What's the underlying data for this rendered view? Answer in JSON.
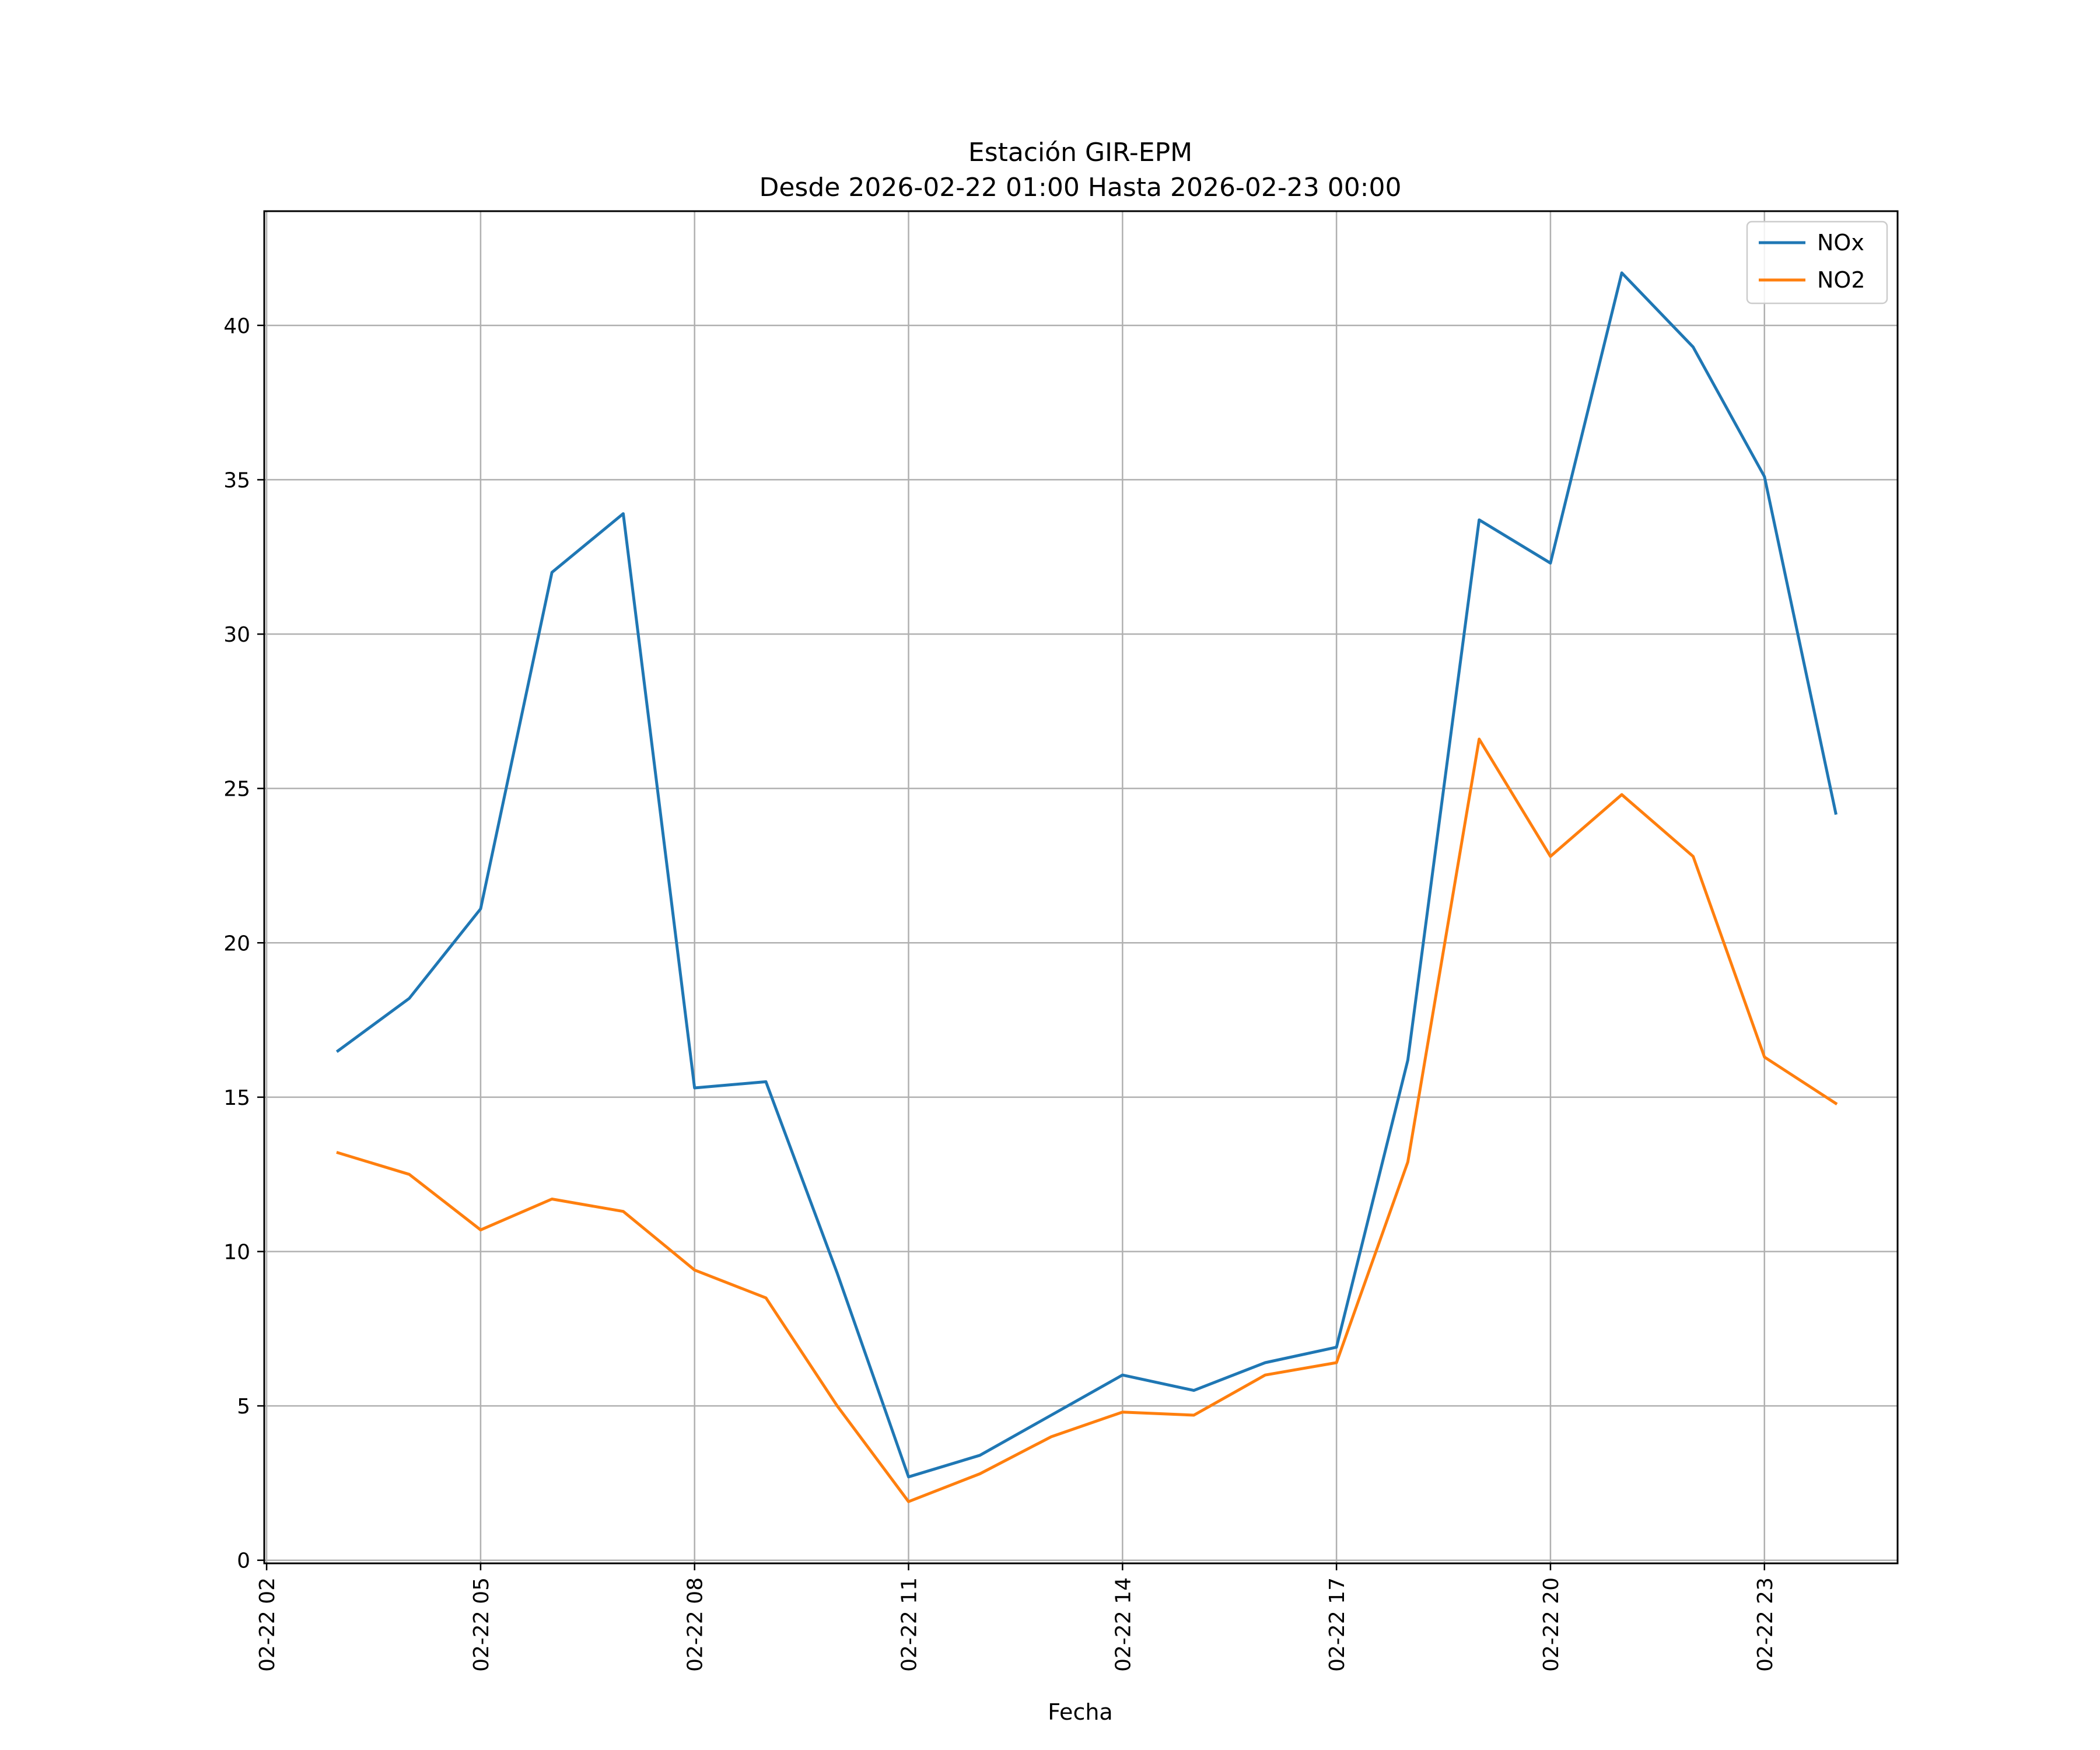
{
  "chart_data": {
    "type": "line",
    "title": "Estación GIR-EPM",
    "subtitle": "Desde 2026-02-22 01:00 Hasta 2026-02-23 00:00",
    "xlabel": "Fecha",
    "ylabel": "",
    "x": [
      "02-22 03",
      "02-22 04",
      "02-22 05",
      "02-22 06",
      "02-22 07",
      "02-22 08",
      "02-22 09",
      "02-22 10",
      "02-22 11",
      "02-22 12",
      "02-22 13",
      "02-22 14",
      "02-22 15",
      "02-22 16",
      "02-22 17",
      "02-22 18",
      "02-22 19",
      "02-22 20",
      "02-22 21",
      "02-22 22",
      "02-22 23",
      "02-23 00"
    ],
    "x_ticks": [
      "02-22 02",
      "02-22 05",
      "02-22 08",
      "02-22 11",
      "02-22 14",
      "02-22 17",
      "02-22 20",
      "02-22 23"
    ],
    "x_range": [
      "02-22 01:58",
      "02-23 00:52"
    ],
    "y_ticks": [
      0,
      5,
      10,
      15,
      20,
      25,
      30,
      35,
      40
    ],
    "ylim": [
      -0.1,
      43.7
    ],
    "grid": true,
    "legend_position": "top-right",
    "series": [
      {
        "name": "NOx",
        "color": "#1f77b4",
        "values": [
          16.5,
          18.2,
          21.1,
          32.0,
          33.9,
          15.3,
          15.5,
          9.3,
          2.7,
          3.4,
          4.7,
          6.0,
          5.5,
          6.4,
          6.9,
          16.2,
          33.7,
          32.3,
          41.7,
          39.3,
          35.1,
          24.2
        ]
      },
      {
        "name": "NO2",
        "color": "#ff7f0e",
        "values": [
          13.2,
          12.5,
          10.7,
          11.7,
          11.3,
          9.4,
          8.5,
          5.0,
          1.9,
          2.8,
          4.0,
          4.8,
          4.7,
          6.0,
          6.4,
          12.9,
          26.6,
          22.8,
          24.8,
          22.8,
          16.3,
          14.8
        ]
      }
    ]
  }
}
